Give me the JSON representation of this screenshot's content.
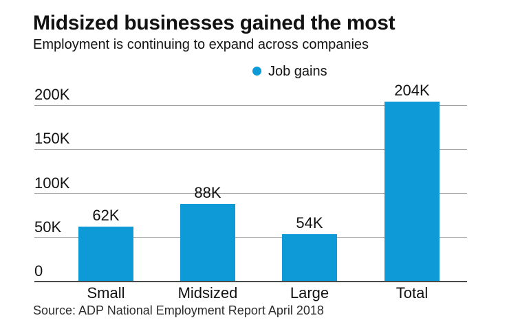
{
  "header": {
    "title": "Midsized businesses gained the most",
    "subtitle": "Employment is continuing to expand across companies"
  },
  "legend": {
    "label": "Job gains"
  },
  "source": "Source: ADP National Employment Report April 2018",
  "colors": {
    "bar": "#0d9ad6",
    "legend_marker": "#0d9ad6",
    "gridline": "#9b9b9b",
    "axis_line": "#4a4a4a",
    "text": "#121212",
    "background": "#ffffff"
  },
  "chart_data": {
    "type": "bar",
    "title": "Midsized businesses gained the most",
    "subtitle": "Employment is continuing to expand across companies",
    "series_name": "Job gains",
    "categories": [
      "Small",
      "Midsized",
      "Large",
      "Total"
    ],
    "values": [
      62000,
      88000,
      54000,
      204000
    ],
    "value_labels": [
      "62K",
      "88K",
      "54K",
      "204K"
    ],
    "yticks": [
      0,
      50000,
      100000,
      150000,
      200000
    ],
    "ytick_labels": [
      "0",
      "50K",
      "100K",
      "150K",
      "200K"
    ],
    "ylim": [
      0,
      210000
    ],
    "xlabel": "",
    "ylabel": "",
    "grid": true,
    "legend_position": "top-center",
    "source": "Source: ADP National Employment Report April 2018"
  }
}
